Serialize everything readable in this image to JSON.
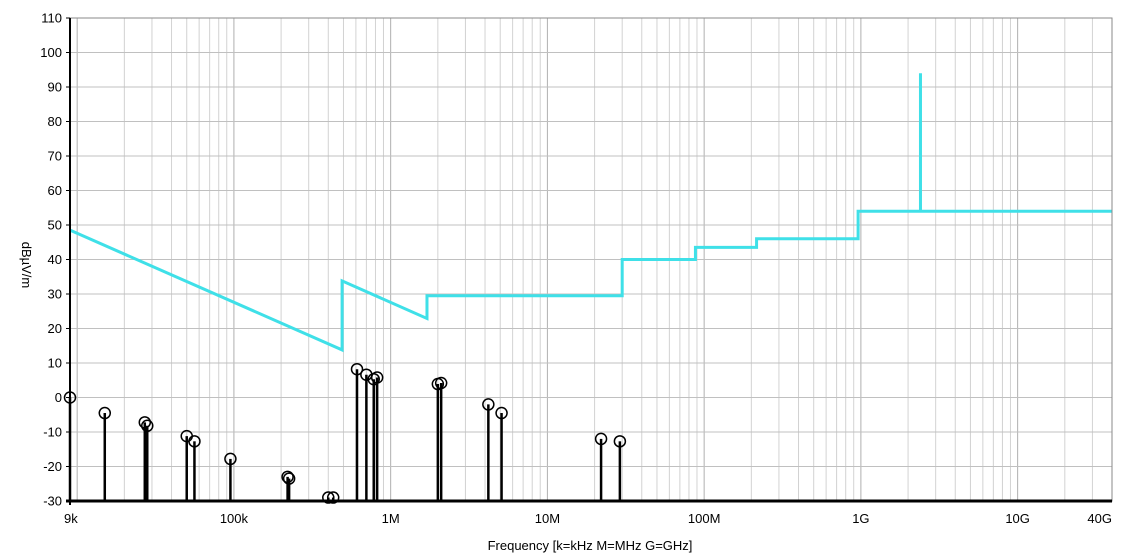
{
  "chart_data": {
    "type": "line",
    "xlabel": "Frequency [k=kHz M=MHz G=GHz]",
    "ylabel": "dBµV/m",
    "x_scale": "log",
    "xlim": [
      9000,
      40000000000
    ],
    "ylim": [
      -30,
      110
    ],
    "grid": true,
    "x_ticks": [
      {
        "value": 9000,
        "label": "9k"
      },
      {
        "value": 100000,
        "label": "100k"
      },
      {
        "value": 1000000,
        "label": "1M"
      },
      {
        "value": 10000000,
        "label": "10M"
      },
      {
        "value": 100000000,
        "label": "100M"
      },
      {
        "value": 1000000000,
        "label": "1G"
      },
      {
        "value": 10000000000,
        "label": "10G"
      },
      {
        "value": 40000000000,
        "label": "40G"
      }
    ],
    "y_ticks": [
      -30,
      -20,
      -10,
      0,
      10,
      20,
      30,
      40,
      50,
      60,
      70,
      80,
      90,
      100,
      110
    ],
    "series": [
      {
        "color": "#3fe0e8",
        "style": "line",
        "points": [
          [
            9000,
            48.5
          ],
          [
            490000,
            13.8
          ],
          [
            490000,
            33.8
          ],
          [
            1705000,
            22.9
          ],
          [
            1705000,
            29.5
          ],
          [
            30000000,
            29.5
          ],
          [
            30000000,
            40
          ],
          [
            88000000,
            40
          ],
          [
            88000000,
            43.5
          ],
          [
            216000000,
            43.5
          ],
          [
            216000000,
            46
          ],
          [
            960000000,
            46
          ],
          [
            960000000,
            54
          ],
          [
            2400000000,
            54
          ],
          [
            2400000000,
            94
          ],
          [
            2400000000,
            54
          ],
          [
            2483500000,
            54
          ],
          [
            40000000000,
            54
          ]
        ]
      },
      {
        "color": "#000000",
        "style": "stem",
        "points": [
          [
            9000,
            0
          ],
          [
            15000,
            -4.5
          ],
          [
            27000,
            -7.2
          ],
          [
            28000,
            -8.2
          ],
          [
            50000,
            -11.2
          ],
          [
            56000,
            -12.7
          ],
          [
            95000,
            -17.8
          ],
          [
            220000,
            -23
          ],
          [
            225000,
            -23.5
          ],
          [
            400000,
            -29
          ],
          [
            430000,
            -29
          ],
          [
            610000,
            8.2
          ],
          [
            700000,
            6.6
          ],
          [
            780000,
            5.3
          ],
          [
            820000,
            5.8
          ],
          [
            2000000,
            3.9
          ],
          [
            2100000,
            4.2
          ],
          [
            4200000,
            -2
          ],
          [
            5100000,
            -4.5
          ],
          [
            22000000,
            -12
          ],
          [
            29000000,
            -12.7
          ]
        ]
      }
    ]
  }
}
